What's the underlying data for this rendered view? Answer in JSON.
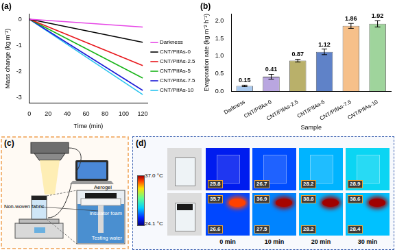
{
  "chart_data": [
    {
      "type": "line",
      "title": "(a)",
      "x_label": "Time (min)",
      "y_label": "Mass change (kg m⁻²)",
      "x": [
        0,
        120
      ],
      "series": [
        {
          "name": "Darkness",
          "color": "#e646e6",
          "values": [
            0,
            -0.3
          ]
        },
        {
          "name": "CNT/PIfAs-0",
          "color": "#000000",
          "values": [
            0,
            -0.88
          ]
        },
        {
          "name": "CNT/PIfAs-2.5",
          "color": "#e8161b",
          "values": [
            0,
            -1.77
          ]
        },
        {
          "name": "CNT/PIfAs-5",
          "color": "#19b419",
          "values": [
            0,
            -2.25
          ]
        },
        {
          "name": "CNT/PIfAs-7.5",
          "color": "#1a1ad6",
          "values": [
            0,
            -2.72
          ]
        },
        {
          "name": "CNT/PIfAs-10",
          "color": "#29c4ef",
          "values": [
            0,
            -2.88
          ]
        }
      ],
      "xlim": [
        0,
        125
      ],
      "xticks": [
        0,
        20,
        40,
        60,
        80,
        100,
        120
      ],
      "ylim": [
        -3.2,
        0.2
      ],
      "yticks": [
        -3,
        -2,
        -1,
        0
      ],
      "grid": false,
      "legend": "right"
    },
    {
      "type": "bar",
      "title": "(b)",
      "x_label": "Sample",
      "y_label": "Evaporation rate (kg m⁻² h⁻¹)",
      "categories": [
        "Darkness",
        "CNT/PIfAs-0",
        "CNT/PIfAs-2.5",
        "CNT/PIfAs-5",
        "CNT/PIfAs-7.5",
        "CNT/PIfAs-10"
      ],
      "values": [
        0.15,
        0.41,
        0.87,
        1.12,
        1.86,
        1.92
      ],
      "errors": [
        0.02,
        0.07,
        0.04,
        0.08,
        0.07,
        0.09
      ],
      "colors": [
        "#a9c9ee",
        "#b9a6e0",
        "#b9b06a",
        "#5f82c8",
        "#f6c08a",
        "#9fd49c"
      ],
      "ylim": [
        0,
        2.2
      ],
      "yticks": [
        {
          "value": 0,
          "label": "0.0"
        },
        0.5,
        {
          "value": 1,
          "label": "1.0"
        },
        1.5,
        {
          "value": 2,
          "label": "2.0"
        }
      ],
      "grid": false,
      "data_labels": true
    }
  ],
  "panel_c": {
    "label": "(c)",
    "fabric": "Non-woven fabric",
    "aerogel": "Aerogel",
    "foam": "Insulator foam",
    "water": "Testing water"
  },
  "panel_d": {
    "label": "(d)",
    "colorbar": {
      "range": [
        24.1,
        37.0
      ],
      "labels": [
        "37.0 °C",
        "24.1 °C"
      ]
    },
    "times": [
      "0 min",
      "10 min",
      "20 min",
      "30 min"
    ],
    "water_row": [
      25.8,
      26.7,
      28.2,
      28.9
    ],
    "aerogel_row": {
      "surface": [
        35.7,
        36.9,
        38.8,
        38.6
      ],
      "ambient": [
        26.6,
        27.5,
        28.2,
        28.4
      ]
    }
  }
}
